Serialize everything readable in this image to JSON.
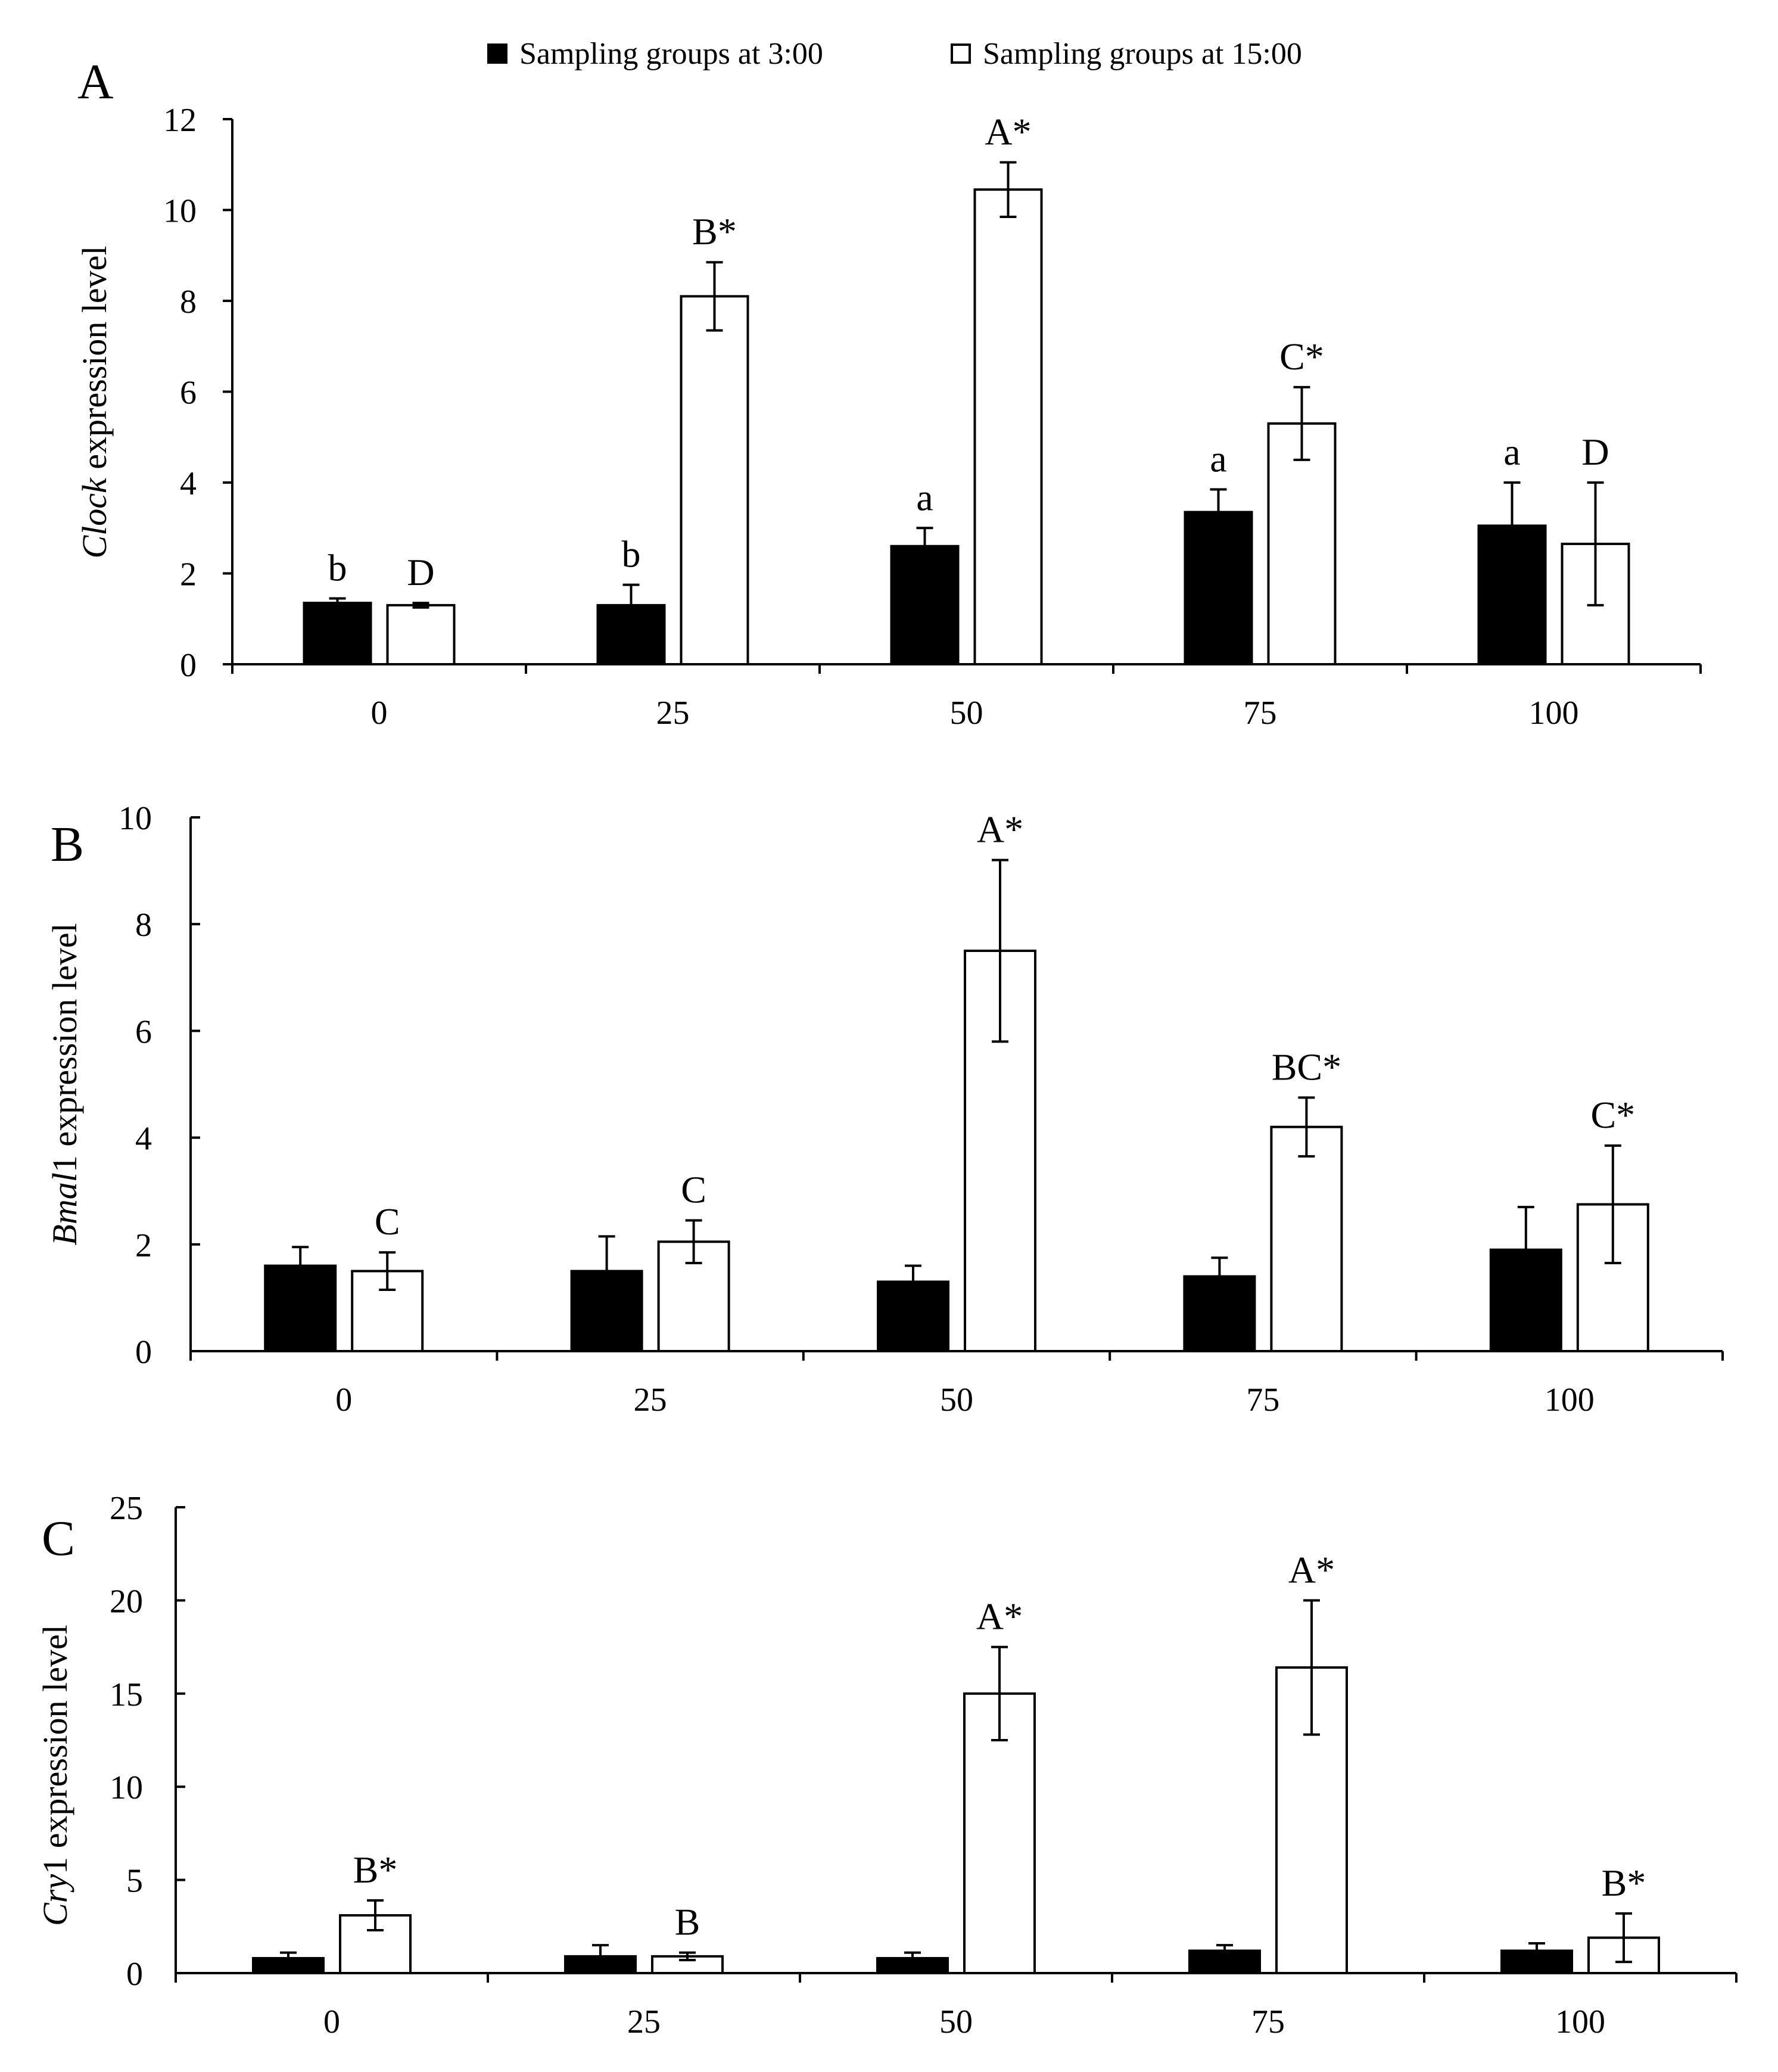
{
  "legend": {
    "items": [
      {
        "label": "Sampling  groups at 3:00",
        "fill": "#000000"
      },
      {
        "label": "Sampling  groups at 15:00",
        "fill": "#ffffff"
      }
    ]
  },
  "colors": {
    "axis": "#000000",
    "bar_3": "#000000",
    "bar_15": "#ffffff"
  },
  "chart_data": [
    {
      "type": "bar",
      "panel": "A",
      "ylabel_italic": "Clock",
      "ylabel_rest": " expression level",
      "categories": [
        "0",
        "25",
        "50",
        "75",
        "100"
      ],
      "ylim": [
        0,
        12
      ],
      "yticks": [
        0,
        2,
        4,
        6,
        8,
        10,
        12
      ],
      "series": [
        {
          "name": "Sampling  groups at 3:00",
          "values": [
            1.35,
            1.3,
            2.6,
            3.35,
            3.05
          ],
          "errors": [
            0.1,
            0.45,
            0.4,
            0.5,
            0.95
          ],
          "labels": [
            "b",
            "b",
            "a",
            "a",
            "a"
          ]
        },
        {
          "name": "Sampling  groups at 15:00",
          "values": [
            1.3,
            8.1,
            10.45,
            5.3,
            2.65
          ],
          "errors": [
            0.05,
            0.75,
            0.6,
            0.8,
            1.35
          ],
          "labels": [
            "D",
            "B*",
            "A*",
            "C*",
            "D"
          ]
        }
      ]
    },
    {
      "type": "bar",
      "panel": "B",
      "ylabel_italic": "Bmal",
      "ylabel_rest": "1 expression level",
      "categories": [
        "0",
        "25",
        "50",
        "75",
        "100"
      ],
      "ylim": [
        0,
        10
      ],
      "yticks": [
        0,
        2,
        4,
        6,
        8,
        10
      ],
      "series": [
        {
          "name": "Sampling  groups at 3:00",
          "values": [
            1.6,
            1.5,
            1.3,
            1.4,
            1.9
          ],
          "errors": [
            0.35,
            0.65,
            0.3,
            0.35,
            0.8
          ],
          "labels": [
            "",
            "",
            "",
            "",
            ""
          ]
        },
        {
          "name": "Sampling  groups at 15:00",
          "values": [
            1.5,
            2.05,
            7.5,
            4.2,
            2.75
          ],
          "errors": [
            0.35,
            0.4,
            1.7,
            0.55,
            1.1
          ],
          "labels": [
            "C",
            "C",
            "A*",
            "BC*",
            "C*"
          ]
        }
      ]
    },
    {
      "type": "bar",
      "panel": "C",
      "ylabel_italic": "Cry",
      "ylabel_rest": "1 expression level",
      "categories": [
        "0",
        "25",
        "50",
        "75",
        "100"
      ],
      "ylim": [
        0,
        25
      ],
      "yticks": [
        0,
        5,
        10,
        15,
        20,
        25
      ],
      "series": [
        {
          "name": "Sampling  groups at 3:00",
          "values": [
            0.8,
            0.9,
            0.8,
            1.2,
            1.2
          ],
          "errors": [
            0.3,
            0.6,
            0.3,
            0.3,
            0.4
          ],
          "labels": [
            "",
            "",
            "",
            "",
            ""
          ]
        },
        {
          "name": "Sampling  groups at 15:00",
          "values": [
            3.1,
            0.9,
            15.0,
            16.4,
            1.9
          ],
          "errors": [
            0.8,
            0.2,
            2.5,
            3.6,
            1.3
          ],
          "labels": [
            "B*",
            "B",
            "A*",
            "A*",
            "B*"
          ]
        }
      ]
    }
  ]
}
